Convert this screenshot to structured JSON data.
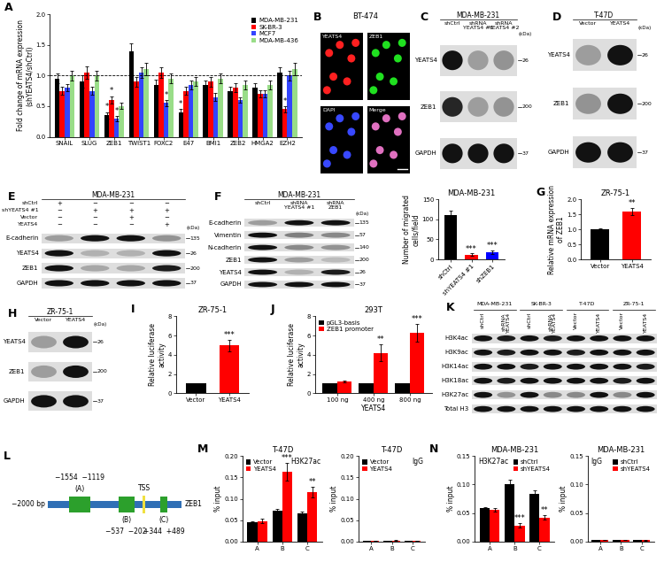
{
  "chart_data": [
    {
      "panel": "A",
      "type": "bar",
      "categories": [
        "SNAIL",
        "SLUG",
        "ZEB1",
        "TWIST1",
        "FOXC2",
        "E47",
        "BMI1",
        "ZEB2",
        "HMGA2",
        "EZH2"
      ],
      "series": [
        {
          "name": "MDA-MB-231",
          "color": "#000000",
          "values": [
            0.95,
            0.9,
            0.35,
            1.4,
            0.85,
            0.4,
            0.85,
            0.75,
            0.8,
            1.05
          ],
          "errors": [
            0.08,
            0.1,
            0.05,
            0.12,
            0.08,
            0.05,
            0.07,
            0.06,
            0.07,
            0.08
          ]
        },
        {
          "name": "SK-BR-3",
          "color": "#ff0000",
          "values": [
            0.75,
            1.05,
            0.6,
            0.9,
            1.05,
            0.75,
            0.9,
            0.8,
            0.7,
            0.45
          ],
          "errors": [
            0.07,
            0.1,
            0.06,
            0.08,
            0.09,
            0.06,
            0.08,
            0.07,
            0.06,
            0.05
          ]
        },
        {
          "name": "MCF7",
          "color": "#3344ff",
          "values": [
            0.8,
            0.75,
            0.3,
            1.05,
            0.55,
            0.85,
            0.65,
            0.6,
            0.7,
            1.0
          ],
          "errors": [
            0.06,
            0.07,
            0.04,
            0.09,
            0.05,
            0.07,
            0.06,
            0.05,
            0.06,
            0.08
          ]
        },
        {
          "name": "MDA-MB-436",
          "color": "#99dd88",
          "values": [
            1.0,
            1.0,
            0.5,
            1.1,
            0.95,
            0.9,
            0.95,
            0.85,
            0.85,
            1.1
          ],
          "errors": [
            0.08,
            0.08,
            0.05,
            0.1,
            0.08,
            0.07,
            0.08,
            0.07,
            0.07,
            0.1
          ]
        }
      ],
      "ylabel": "Fold change of mRNA expression\n(shYEATS4/shCtrl)",
      "ylim": [
        0,
        2.0
      ],
      "yticks": [
        {
          "value": 0,
          "label": "0.0"
        },
        {
          "value": 0.5,
          "label": "0.5"
        },
        {
          "value": 1.0,
          "label": "1.0"
        },
        {
          "value": 1.5,
          "label": "1.5"
        },
        {
          "value": 2.0,
          "label": "2.0"
        }
      ],
      "reference_line": 1.0,
      "legend": "upper right",
      "annotations": [
        {
          "category": "ZEB1",
          "series": "MDA-MB-231",
          "text": "*"
        },
        {
          "category": "ZEB1",
          "series": "SK-BR-3",
          "text": "*"
        },
        {
          "category": "ZEB1",
          "series": "MCF7",
          "text": "*"
        },
        {
          "category": "FOXC2",
          "series": "MCF7",
          "text": "*"
        },
        {
          "category": "E47",
          "series": "MDA-MB-231",
          "text": "*"
        },
        {
          "category": "EZH2",
          "series": "SK-BR-3",
          "text": "*"
        }
      ]
    },
    {
      "type": "bar",
      "title": "MDA-MB-231",
      "categories": [
        "shCtrl",
        "shYEATS4 #1",
        "shZEB1"
      ],
      "values": [
        112,
        12,
        18
      ],
      "errors": [
        10,
        3,
        4
      ],
      "colors": [
        "#000000",
        "#ff0000",
        "#0000ff"
      ],
      "ylabel": "Number of migrated\ncells/field",
      "ylim": [
        0,
        150
      ],
      "yticks": [
        0,
        50,
        100,
        150
      ],
      "annotations": [
        {
          "category": "shYEATS4 #1",
          "text": "***"
        },
        {
          "category": "shZEB1",
          "text": "***"
        }
      ]
    },
    {
      "panel": "G",
      "type": "bar",
      "title": "ZR-75-1",
      "categories": [
        "Vector",
        "YEATS4"
      ],
      "values": [
        1.0,
        1.6
      ],
      "errors": [
        0.05,
        0.12
      ],
      "colors": [
        "#000000",
        "#ff0000"
      ],
      "ylabel": "Relative mRNA expression\nof ZEB1",
      "ylim": [
        0,
        2.0
      ],
      "yticks": [
        {
          "value": 0,
          "label": "0.0"
        },
        {
          "value": 0.5,
          "label": "0.5"
        },
        {
          "value": 1.0,
          "label": "1.0"
        },
        {
          "value": 1.5,
          "label": "1.5"
        },
        {
          "value": 2.0,
          "label": "2.0"
        }
      ],
      "annotations": [
        {
          "category": "YEATS4",
          "text": "**"
        }
      ]
    },
    {
      "panel": "I",
      "type": "bar",
      "title": "ZR-75-1",
      "categories": [
        "Vector",
        "YEATS4"
      ],
      "values": [
        1.0,
        5.0
      ],
      "errors": [
        0.05,
        0.6
      ],
      "colors": [
        "#000000",
        "#ff0000"
      ],
      "ylabel": "Relative luciferase\nactivity",
      "ylim": [
        0,
        8
      ],
      "yticks": [
        0,
        2,
        4,
        6,
        8
      ],
      "annotations": [
        {
          "category": "YEATS4",
          "text": "***"
        }
      ]
    },
    {
      "panel": "J",
      "type": "bar",
      "title": "293T",
      "categories": [
        "100 ng",
        "400 ng",
        "800 ng"
      ],
      "xlabel": "YEATS4",
      "series": [
        {
          "name": "pGL3-basis",
          "color": "#000000",
          "values": [
            1.0,
            1.0,
            1.0
          ],
          "errors": [
            0.05,
            0.05,
            0.05
          ]
        },
        {
          "name": "ZEB1 promoter",
          "color": "#ff0000",
          "values": [
            1.2,
            4.2,
            6.3
          ],
          "errors": [
            0.1,
            0.9,
            0.9
          ]
        }
      ],
      "ylabel": "Relative luciferase\nactivity",
      "ylim": [
        0,
        8
      ],
      "yticks": [
        0,
        2,
        4,
        6,
        8
      ],
      "legend": "upper left",
      "annotations": [
        {
          "category": "400 ng",
          "series": "ZEB1 promoter",
          "text": "**"
        },
        {
          "category": "800 ng",
          "series": "ZEB1 promoter",
          "text": "***"
        }
      ]
    },
    {
      "panel": "M",
      "type": "bar",
      "title": "T-47D",
      "subtitle": "H3K27ac",
      "categories": [
        "A",
        "B",
        "C"
      ],
      "series": [
        {
          "name": "Vector",
          "color": "#000000",
          "values": [
            0.045,
            0.072,
            0.065
          ],
          "errors": [
            0.003,
            0.005,
            0.005
          ]
        },
        {
          "name": "YEATS4",
          "color": "#ff0000",
          "values": [
            0.048,
            0.163,
            0.115
          ],
          "errors": [
            0.005,
            0.02,
            0.012
          ]
        }
      ],
      "ylabel": "% input",
      "ylim": [
        0,
        0.2
      ],
      "yticks": [
        {
          "value": 0,
          "label": "0.00"
        },
        {
          "value": 0.05,
          "label": "0.05"
        },
        {
          "value": 0.1,
          "label": "0.10"
        },
        {
          "value": 0.15,
          "label": "0.15"
        },
        {
          "value": 0.2,
          "label": "0.20"
        }
      ],
      "legend": "upper left",
      "annotations": [
        {
          "category": "B",
          "series": "YEATS4",
          "text": "***"
        },
        {
          "category": "C",
          "series": "YEATS4",
          "text": "**"
        }
      ]
    },
    {
      "type": "bar",
      "title": "T-47D",
      "subtitle": "IgG",
      "categories": [
        "A",
        "B",
        "C"
      ],
      "series": [
        {
          "name": "Vector",
          "color": "#000000",
          "values": [
            0.002,
            0.002,
            0.0015
          ],
          "errors": [
            0.0005,
            0.0005,
            0.0005
          ]
        },
        {
          "name": "YEATS4",
          "color": "#ff0000",
          "values": [
            0.002,
            0.0025,
            0.002
          ],
          "errors": [
            0.0005,
            0.0005,
            0.0005
          ]
        }
      ],
      "ylabel": "% input",
      "ylim": [
        0,
        0.2
      ],
      "yticks": [
        {
          "value": 0,
          "label": "0.00"
        },
        {
          "value": 0.05,
          "label": "0.05"
        },
        {
          "value": 0.1,
          "label": "0.10"
        },
        {
          "value": 0.15,
          "label": "0.15"
        },
        {
          "value": 0.2,
          "label": "0.20"
        }
      ],
      "legend": "upper left"
    },
    {
      "panel": "N",
      "type": "bar",
      "title": "MDA-MB-231",
      "subtitle": "H3K27ac",
      "categories": [
        "A",
        "B",
        "C"
      ],
      "series": [
        {
          "name": "shCtrl",
          "color": "#000000",
          "values": [
            0.058,
            0.1,
            0.083
          ],
          "errors": [
            0.003,
            0.008,
            0.006
          ]
        },
        {
          "name": "shYEATS4",
          "color": "#ff0000",
          "values": [
            0.055,
            0.028,
            0.042
          ],
          "errors": [
            0.003,
            0.004,
            0.004
          ]
        }
      ],
      "ylabel": "% input",
      "ylim": [
        0,
        0.15
      ],
      "yticks": [
        {
          "value": 0,
          "label": "0.00"
        },
        {
          "value": 0.05,
          "label": "0.05"
        },
        {
          "value": 0.1,
          "label": "0.10"
        },
        {
          "value": 0.15,
          "label": "0.15"
        }
      ],
      "legend": "upper right",
      "annotations": [
        {
          "category": "B",
          "series": "shYEATS4",
          "text": "***"
        },
        {
          "category": "C",
          "series": "shYEATS4",
          "text": "**"
        }
      ]
    },
    {
      "type": "bar",
      "title": "MDA-MB-231",
      "subtitle": "IgG",
      "categories": [
        "A",
        "B",
        "C"
      ],
      "series": [
        {
          "name": "shCtrl",
          "color": "#000000",
          "values": [
            0.003,
            0.0025,
            0.0025
          ],
          "errors": [
            0.0005,
            0.0005,
            0.0005
          ]
        },
        {
          "name": "shYEATS4",
          "color": "#ff0000",
          "values": [
            0.003,
            0.003,
            0.0025
          ],
          "errors": [
            0.0005,
            0.0005,
            0.0005
          ]
        }
      ],
      "ylabel": "% input",
      "ylim": [
        0,
        0.15
      ],
      "yticks": [
        {
          "value": 0,
          "label": "0.00"
        },
        {
          "value": 0.05,
          "label": "0.05"
        },
        {
          "value": 0.1,
          "label": "0.10"
        },
        {
          "value": 0.15,
          "label": "0.15"
        }
      ],
      "legend": "upper right"
    }
  ],
  "image": {
    "panel": "B",
    "title": "BT-474",
    "channels": [
      {
        "name": "YEATS4",
        "color": "#ff2020"
      },
      {
        "name": "ZEB1",
        "color": "#20e020"
      },
      {
        "name": "DAPI",
        "color": "#3848ff"
      },
      {
        "name": "Merge",
        "color": "#e070c0"
      }
    ]
  },
  "blots": [
    {
      "panel": "C",
      "title": "MDA-MB-231",
      "lanes": [
        "shCtrl",
        "shRNA\nYEATS4 #1",
        "shRNA\nYEATS4 #2"
      ],
      "unit": "(kDa)",
      "bands": [
        {
          "name": "YEATS4",
          "kda": 26,
          "intensity": [
            1.0,
            0.3,
            0.35
          ]
        },
        {
          "name": "ZEB1",
          "kda": 200,
          "intensity": [
            0.9,
            0.3,
            0.35
          ]
        },
        {
          "name": "GAPDH",
          "kda": 37,
          "intensity": [
            1.0,
            1.0,
            1.0
          ]
        }
      ]
    },
    {
      "panel": "D",
      "title": "T-47D",
      "lanes": [
        "Vector",
        "YEATS4"
      ],
      "unit": "(kDa)",
      "bands": [
        {
          "name": "YEATS4",
          "kda": 26,
          "intensity": [
            0.3,
            1.0
          ]
        },
        {
          "name": "ZEB1",
          "kda": 200,
          "intensity": [
            0.35,
            1.0
          ]
        },
        {
          "name": "GAPDH",
          "kda": 37,
          "intensity": [
            1.0,
            1.0
          ]
        }
      ]
    },
    {
      "panel": "E",
      "title": "MDA-MB-231",
      "conditions": [
        {
          "name": "shCtrl",
          "signs": [
            "+",
            "−",
            "−",
            "−"
          ]
        },
        {
          "name": "shYEATS4 #1",
          "signs": [
            "−",
            "+",
            "+",
            "+"
          ]
        },
        {
          "name": "Vector",
          "signs": [
            "−",
            "−",
            "+",
            "−"
          ]
        },
        {
          "name": "YEATS4",
          "signs": [
            "−",
            "−",
            "−",
            "+"
          ]
        }
      ],
      "unit": "(kDa)",
      "bands": [
        {
          "name": "E-cadherin",
          "kda": 135,
          "intensity": [
            0.3,
            1.0,
            1.0,
            0.35
          ]
        },
        {
          "name": "YEATS4",
          "kda": 26,
          "intensity": [
            1.0,
            0.2,
            0.2,
            1.0
          ]
        },
        {
          "name": "ZEB1",
          "kda": 200,
          "intensity": [
            1.0,
            0.25,
            0.25,
            0.95
          ]
        },
        {
          "name": "GAPDH",
          "kda": 37,
          "intensity": [
            1.0,
            1.0,
            1.0,
            1.0
          ]
        }
      ]
    },
    {
      "panel": "F",
      "title": "MDA-MB-231",
      "lanes": [
        "shCtrl",
        "shRNA\nYEATS4 #1",
        "shRNA\nZEB1"
      ],
      "unit": "(kDa)",
      "bands": [
        {
          "name": "E-cadherin",
          "kda": 135,
          "intensity": [
            0.3,
            1.0,
            1.0
          ]
        },
        {
          "name": "Vimentin",
          "kda": 57,
          "intensity": [
            1.0,
            0.45,
            0.4
          ]
        },
        {
          "name": "N-cadherin",
          "kda": 140,
          "intensity": [
            1.0,
            0.4,
            0.35
          ]
        },
        {
          "name": "ZEB1",
          "kda": 200,
          "intensity": [
            1.0,
            0.3,
            0.15
          ]
        },
        {
          "name": "YEATS4",
          "kda": 26,
          "intensity": [
            1.0,
            0.2,
            0.95
          ]
        },
        {
          "name": "GAPDH",
          "kda": 37,
          "intensity": [
            1.0,
            1.0,
            1.0
          ]
        }
      ]
    },
    {
      "panel": "H",
      "title": "ZR-75-1",
      "lanes": [
        "Vector",
        "YEATS4"
      ],
      "unit": "(kDa)",
      "bands": [
        {
          "name": "YEATS4",
          "kda": 26,
          "intensity": [
            0.3,
            1.0
          ]
        },
        {
          "name": "ZEB1",
          "kda": 200,
          "intensity": [
            0.3,
            1.0
          ]
        },
        {
          "name": "GAPDH",
          "kda": 37,
          "intensity": [
            1.0,
            1.0
          ]
        }
      ]
    },
    {
      "panel": "K",
      "groups": [
        {
          "name": "MDA-MB-231",
          "lanes": [
            "shCtrl",
            "shRNA\nYEATS4"
          ]
        },
        {
          "name": "SK-BR-3",
          "lanes": [
            "shCtrl",
            "shRNA\nYEATS4"
          ]
        },
        {
          "name": "T-47D",
          "lanes": [
            "Vector",
            "YEATS4"
          ]
        },
        {
          "name": "ZR-75-1",
          "lanes": [
            "Vector",
            "YEATS4"
          ]
        }
      ],
      "bands": [
        {
          "name": "H3K4ac",
          "intensity": [
            1.0,
            0.95,
            1.0,
            0.95,
            1.0,
            1.0,
            1.0,
            1.0
          ]
        },
        {
          "name": "H3K9ac",
          "intensity": [
            1.0,
            0.95,
            1.0,
            1.0,
            0.95,
            1.0,
            1.0,
            1.0
          ]
        },
        {
          "name": "H3K14ac",
          "intensity": [
            1.0,
            1.0,
            0.95,
            1.0,
            1.0,
            1.0,
            1.0,
            0.95
          ]
        },
        {
          "name": "H3K18ac",
          "intensity": [
            1.0,
            0.95,
            1.0,
            1.0,
            1.0,
            1.0,
            0.95,
            1.0
          ]
        },
        {
          "name": "H3K27ac",
          "intensity": [
            1.0,
            0.35,
            1.0,
            0.4,
            0.4,
            1.0,
            0.4,
            1.0
          ]
        },
        {
          "name": "Total H3",
          "intensity": [
            1.0,
            1.0,
            1.0,
            1.0,
            1.0,
            1.0,
            1.0,
            1.0
          ]
        }
      ]
    }
  ],
  "diagram": {
    "panel": "L",
    "start": {
      "value": -2000,
      "label": "−2000 bp"
    },
    "tss": {
      "value": 0,
      "label": "TSS"
    },
    "gene": "ZEB1",
    "regions": [
      {
        "name": "(A)",
        "start": {
          "value": -1554,
          "label": "−1554"
        },
        "end": {
          "value": -1119,
          "label": "−1119"
        }
      },
      {
        "name": "(B)",
        "start": {
          "value": -537,
          "label": "−537"
        },
        "end": {
          "value": -202,
          "label": "−202"
        }
      },
      {
        "name": "(C)",
        "start": {
          "value": 344,
          "label": "+344"
        },
        "end": {
          "value": 489,
          "label": "+489"
        }
      }
    ]
  }
}
